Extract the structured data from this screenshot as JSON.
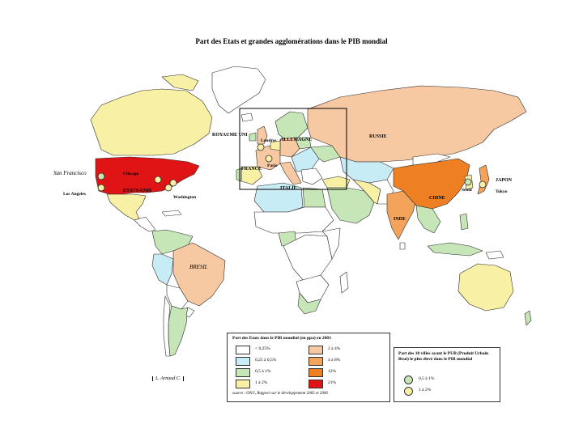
{
  "title": "Part des Etats et grandes agglomérations dans le PIB mondial",
  "colors": {
    "c1": "#ffffff",
    "c2": "#c8ecf5",
    "c3": "#c6e6b8",
    "c4": "#f8f0a4",
    "c5": "#f6c9a2",
    "c6": "#f4a35a",
    "c7": "#ee7f22",
    "c8": "#e01414",
    "ocean": "#ffffff",
    "border": "#2b2b2b"
  },
  "country_labels": [
    "ROYAUME UNI",
    "ALLEMAGNE",
    "RUSSIE",
    "FRANCE",
    "ITALIE",
    "ETATS-UNIS",
    "CHINE",
    "JAPON",
    "INDE",
    "BRESIL"
  ],
  "city_labels": [
    "Londres",
    "Paris",
    "Chicago",
    "San Francisco",
    "Los Angeles",
    "Washington",
    "Séoul",
    "Tokyo"
  ],
  "legend": {
    "title": "Part des Etats dans le PIB mondial (en ppa) en 2003",
    "classes": [
      {
        "label": "< 0,25%",
        "color_key": "c1"
      },
      {
        "label": "0,25 à 0,5%",
        "color_key": "c2"
      },
      {
        "label": "0,5 à 1%",
        "color_key": "c3"
      },
      {
        "label": "1 à 2%",
        "color_key": "c4"
      },
      {
        "label": "2 à 4%",
        "color_key": "c5"
      },
      {
        "label": "4 à 8%",
        "color_key": "c6"
      },
      {
        "label": "12%",
        "color_key": "c7"
      },
      {
        "label": "21%",
        "color_key": "c8"
      }
    ],
    "source": "source : ONU, Rapport sur le développement 2005 et 2006"
  },
  "cities_legend": {
    "title": "Part des 10 villes ayant le PUB (Produit Urbain Brut) le plus élevé dans le PIB mondial",
    "items": [
      {
        "label": "0,5 à 1%",
        "color": "#c6e6b8"
      },
      {
        "label": "1 à 2%",
        "color": "#f8f0a4"
      }
    ]
  },
  "credit": "L. Arnaud C."
}
